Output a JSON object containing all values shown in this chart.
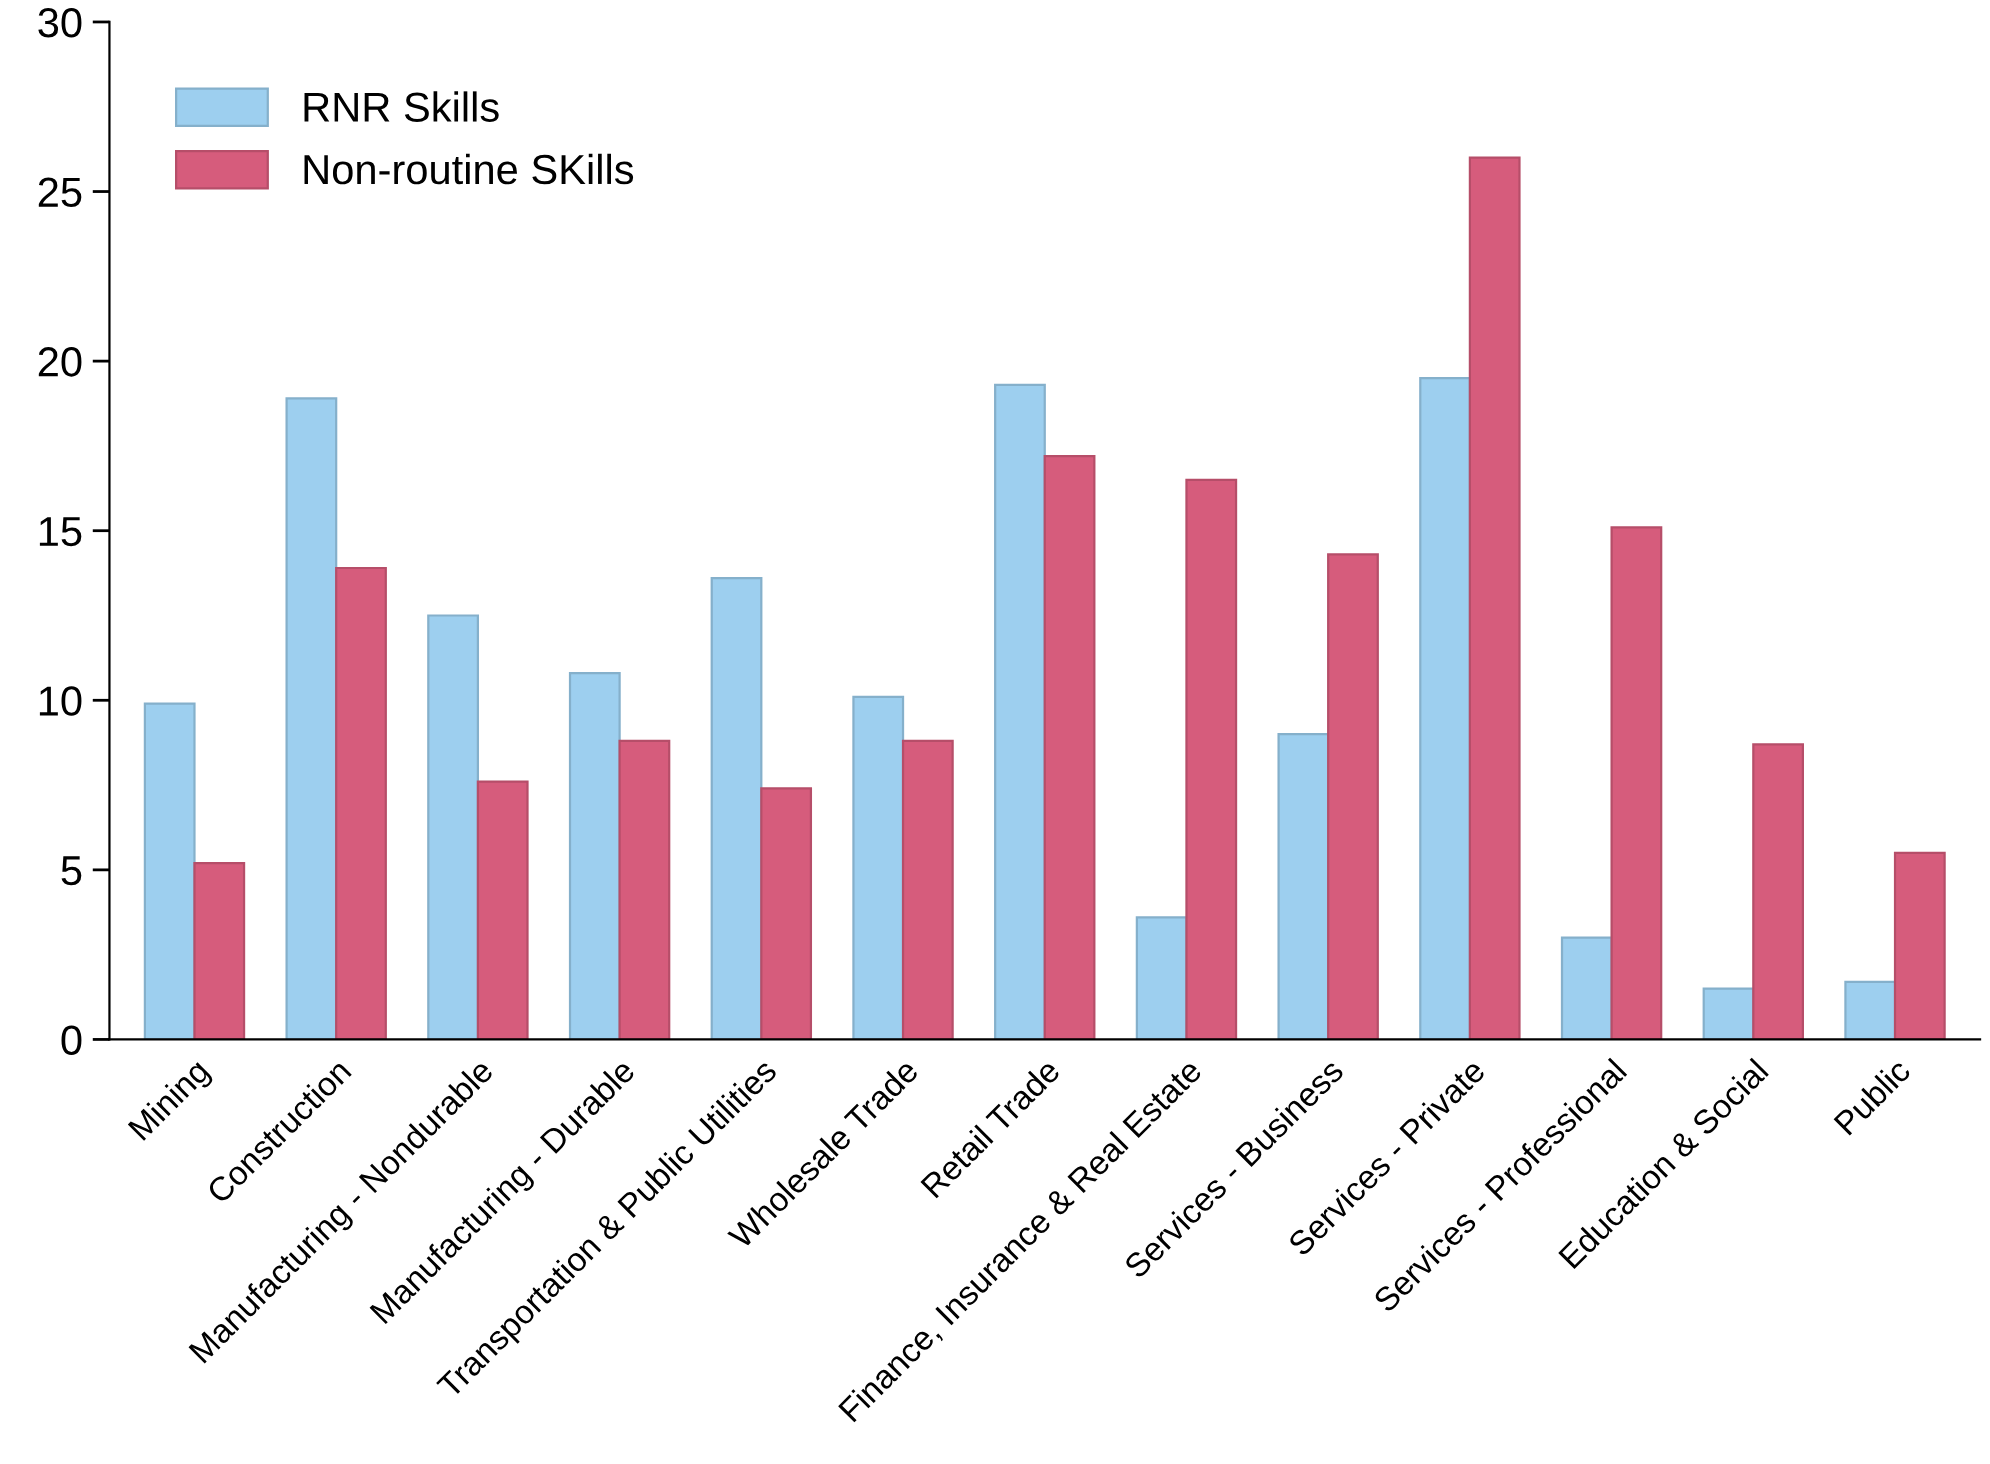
{
  "chart_data": {
    "type": "bar",
    "categories": [
      "Mining",
      "Construction",
      "Manufacturing - Nondurable",
      "Manufacturing - Durable",
      "Transportation & Public Utilities",
      "Wholesale Trade",
      "Retail Trade",
      "Finance, Insurance & Real Estate",
      "Services - Business",
      "Services - Private",
      "Services - Professional",
      "Education & Social",
      "Public"
    ],
    "series": [
      {
        "name": "RNR Skills",
        "color": "#9dcfef",
        "values": [
          9.9,
          18.9,
          12.5,
          10.8,
          13.6,
          10.1,
          19.3,
          3.6,
          9.0,
          19.5,
          3.0,
          1.5,
          1.7
        ]
      },
      {
        "name": "Non-routine SKills",
        "color": "#d65c7c",
        "values": [
          5.2,
          13.9,
          7.6,
          8.8,
          7.4,
          8.8,
          17.2,
          16.5,
          14.3,
          26.0,
          15.1,
          8.7,
          5.5
        ]
      }
    ],
    "ylim": [
      0,
      30
    ],
    "yticks": [
      0,
      5,
      10,
      15,
      20,
      25,
      30
    ],
    "grid": false,
    "legend": "top left"
  }
}
